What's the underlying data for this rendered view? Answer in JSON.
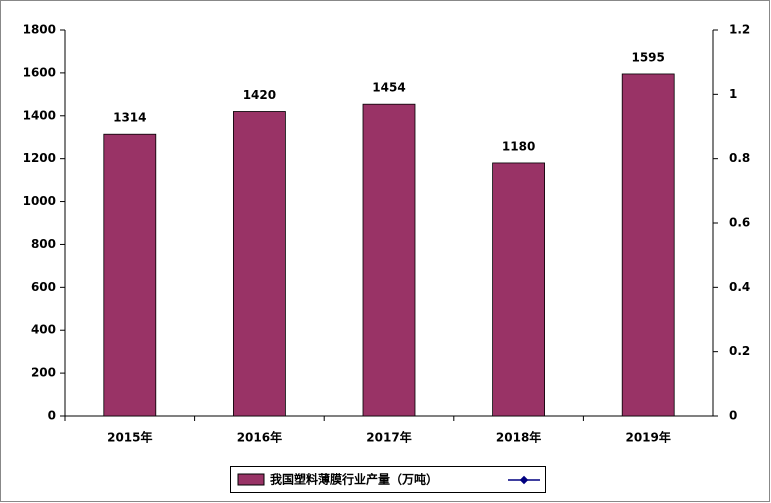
{
  "chart_data": {
    "type": "bar",
    "categories": [
      "2015年",
      "2016年",
      "2017年",
      "2018年",
      "2019年"
    ],
    "series": [
      {
        "name": "我国塑料薄膜行业产量（万吨）",
        "color": "#993366",
        "values": [
          1314,
          1420,
          1454,
          1180,
          1595
        ]
      }
    ],
    "ylim": [
      0,
      1800
    ],
    "yticks": [
      0,
      200,
      400,
      600,
      800,
      1000,
      1200,
      1400,
      1600,
      1800
    ],
    "y2lim": [
      0,
      1.2
    ],
    "y2ticks": [
      0,
      0.2,
      0.4,
      0.6,
      0.8,
      1,
      1.2
    ],
    "grid": false,
    "legend": "bottom"
  }
}
